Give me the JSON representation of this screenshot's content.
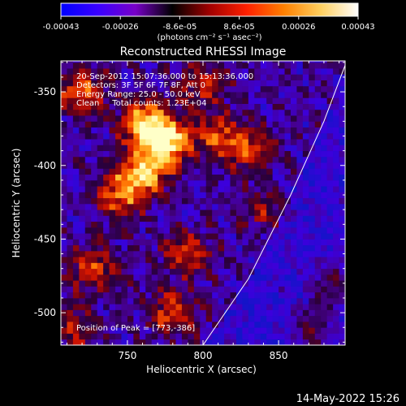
{
  "chart_data": {
    "type": "heatmap",
    "title": "Reconstructed RHESSI Image",
    "xlabel": "Heliocentric X (arcsec)",
    "ylabel": "Heliocentric Y (arcsec)",
    "xlim": [
      706,
      894
    ],
    "ylim": [
      -522,
      -329
    ],
    "x_ticks": [
      750,
      800,
      850
    ],
    "y_ticks": [
      -350,
      -400,
      -450,
      -500
    ],
    "colorbar": {
      "range": [
        -0.00043,
        0.00043
      ],
      "tick_labels": [
        "-0.00043",
        "-0.00026",
        "-8.6e-05",
        "8.6e-05",
        "0.00026",
        "0.00043"
      ],
      "unit_label": "(photons cm⁻² s⁻¹ asec⁻²)",
      "colors": [
        "#0000ff",
        "#3a00ff",
        "#7800c8",
        "#000000",
        "#a00000",
        "#ff2000",
        "#ff8000",
        "#ffd060",
        "#ffffff"
      ]
    },
    "annotations": {
      "time_range": "20-Sep-2012 15:07:36.000 to 15:13:36.000",
      "detectors": "Detectors: 3F 5F 6F 7F 8F, Att 0",
      "energy_range": "Energy Range: 25.0 - 50.0 keV",
      "method_counts": "Clean     Total counts: 1.23E+04",
      "peak_position": "Position of Peak = [773,-386]"
    },
    "limb": {
      "description": "solar limb arc",
      "points": [
        [
          800,
          -522
        ],
        [
          830,
          -477
        ],
        [
          858,
          -420
        ],
        [
          880,
          -370
        ],
        [
          894,
          -332
        ]
      ]
    },
    "hot_regions": [
      {
        "x": 775,
        "y": -385,
        "level": 1.0
      },
      {
        "x": 762,
        "y": -370,
        "level": 0.8
      },
      {
        "x": 760,
        "y": -405,
        "level": 0.75
      },
      {
        "x": 745,
        "y": -420,
        "level": 0.6
      },
      {
        "x": 720,
        "y": -350,
        "level": 0.6
      },
      {
        "x": 728,
        "y": -470,
        "level": 0.55
      },
      {
        "x": 790,
        "y": -460,
        "level": 0.5
      },
      {
        "x": 810,
        "y": -380,
        "level": 0.5
      },
      {
        "x": 830,
        "y": -390,
        "level": 0.45
      },
      {
        "x": 800,
        "y": -345,
        "level": 0.45
      },
      {
        "x": 780,
        "y": -500,
        "level": 0.55
      },
      {
        "x": 885,
        "y": -480,
        "level": 0.55
      },
      {
        "x": 872,
        "y": -510,
        "level": 0.5
      },
      {
        "x": 715,
        "y": -510,
        "level": 0.4
      },
      {
        "x": 840,
        "y": -430,
        "level": 0.3
      }
    ]
  },
  "footer": {
    "date": "14-May-2022 15:26"
  }
}
